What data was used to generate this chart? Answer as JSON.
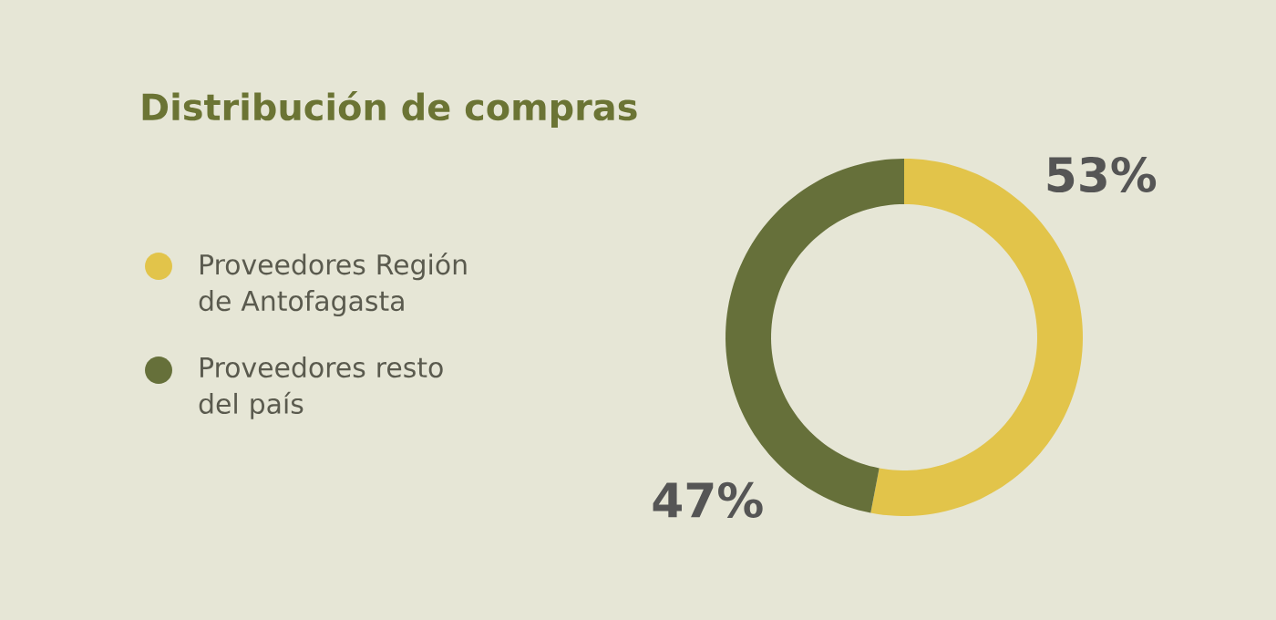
{
  "chart_data": {
    "type": "donut",
    "title": "Distribución de compras",
    "categories": [
      "Proveedores Región de Antofagasta",
      "Proveedores resto del país"
    ],
    "values": [
      53,
      47
    ],
    "colors": [
      "#e2c44a",
      "#66703a"
    ],
    "value_labels": [
      "53%",
      "47%"
    ],
    "legend": "left"
  }
}
